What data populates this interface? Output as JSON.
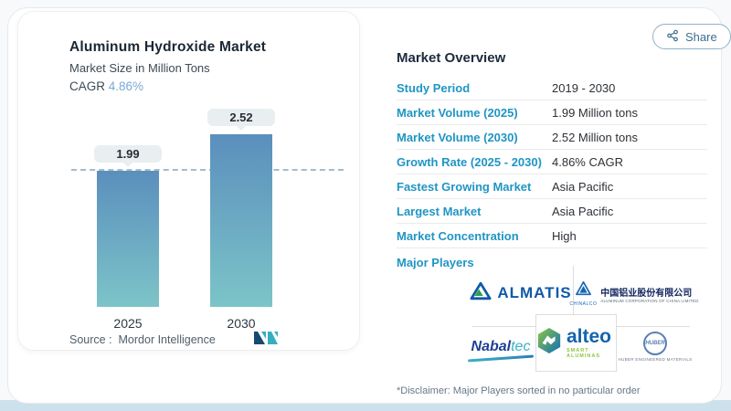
{
  "share": {
    "label": "Share",
    "icon": "share-nodes-icon"
  },
  "chart_card": {
    "title": "Aluminum Hydroxide Market",
    "subtitle": "Market Size in Million Tons",
    "cagr_label": "CAGR",
    "cagr_value": "4.86%",
    "source_label": "Source :",
    "source_value": "Mordor Intelligence",
    "logo": "mordor-intelligence-logo"
  },
  "chart_data": {
    "type": "bar",
    "categories": [
      "2025",
      "2030"
    ],
    "values": [
      1.99,
      2.52
    ],
    "value_labels": [
      "1.99",
      "2.52"
    ],
    "title": "Aluminum Hydroxide Market",
    "ylabel": "Market Size in Million Tons",
    "ylim": [
      0,
      2.52
    ],
    "grid": false,
    "legend": false,
    "baseline_marker_value": 1.99,
    "bar_color_top": "#5a8fbc",
    "bar_color_bottom": "#7cc4c8"
  },
  "overview": {
    "heading": "Market Overview",
    "rows": [
      {
        "label": "Study Period",
        "value": "2019 - 2030"
      },
      {
        "label": "Market Volume (2025)",
        "value": "1.99 Million tons"
      },
      {
        "label": "Market Volume (2030)",
        "value": "2.52 Million tons"
      },
      {
        "label": "Growth Rate (2025 - 2030)",
        "value": "4.86% CAGR"
      },
      {
        "label": "Fastest Growing Market",
        "value": "Asia Pacific"
      },
      {
        "label": "Largest Market",
        "value": "Asia Pacific"
      },
      {
        "label": "Market Concentration",
        "value": "High"
      }
    ],
    "major_players_label": "Major Players",
    "major_players": [
      {
        "name": "ALMATIS",
        "icon": "almatis-triangle-icon"
      },
      {
        "name": "CHINALCO",
        "caption": "CHINALCO",
        "text_cn": "中国铝业股份有限公司",
        "text_en": "ALUMINUM CORPORATION OF CHINA LIMITED",
        "icon": "chinalco-triangle-icon"
      },
      {
        "name": "Nabaltec",
        "part1": "Nabal",
        "part2": "tec"
      },
      {
        "name": "alteo",
        "tagline": "SMART ALUMINAS",
        "icon": "alteo-hexagon-icon"
      },
      {
        "name": "HUBER",
        "tagline": "HUBER ENGINEERED MATERIALS",
        "icon": "huber-circle-icon"
      }
    ],
    "disclaimer": "*Disclaimer: Major Players sorted in no particular order"
  },
  "colors": {
    "accent_teal": "#2095c4",
    "heading_navy": "#1c2b3d",
    "cagr_blue": "#7aa9d6",
    "dashed_line": "#a4bccb"
  }
}
